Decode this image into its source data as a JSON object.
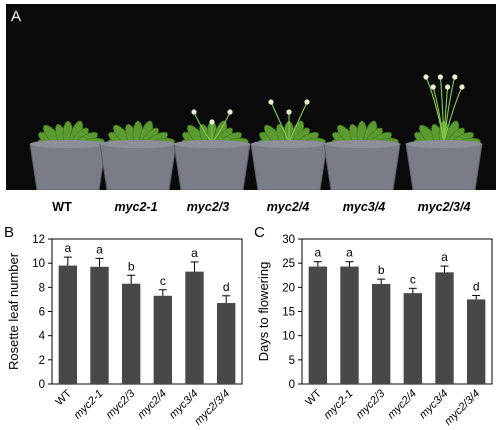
{
  "panel_a": {
    "letter": "A",
    "genotypes": [
      "WT",
      "myc2-1",
      "myc2/3",
      "myc2/4",
      "myc3/4",
      "myc2/3/4"
    ],
    "background_color": "#0a0a0a",
    "pot_color": "#7a7c88",
    "leaf_color": "#5a9a2e"
  },
  "chart_data": [
    {
      "type": "bar",
      "panel_letter": "B",
      "categories": [
        "WT",
        "myc2-1",
        "myc2/3",
        "myc2/4",
        "myc3/4",
        "myc2/3/4"
      ],
      "values": [
        9.8,
        9.7,
        8.3,
        7.3,
        9.3,
        6.7
      ],
      "errors": [
        0.7,
        0.7,
        0.7,
        0.5,
        0.8,
        0.6
      ],
      "significance_letters": [
        "a",
        "a",
        "b",
        "c",
        "a",
        "d"
      ],
      "ylabel": "Rosette leaf number",
      "ylim": [
        0,
        12
      ],
      "yticks": [
        0,
        2,
        4,
        6,
        8,
        10,
        12
      ],
      "bar_color": "#484848"
    },
    {
      "type": "bar",
      "panel_letter": "C",
      "categories": [
        "WT",
        "myc2-1",
        "myc2/3",
        "myc2/4",
        "myc3/4",
        "myc2/3/4"
      ],
      "values": [
        24.3,
        24.3,
        20.7,
        18.8,
        23.1,
        17.5
      ],
      "errors": [
        1.0,
        1.0,
        1.0,
        1.0,
        1.3,
        0.8
      ],
      "significance_letters": [
        "a",
        "a",
        "b",
        "c",
        "a",
        "d"
      ],
      "ylabel": "Days to flowering",
      "ylim": [
        0,
        30
      ],
      "yticks": [
        0,
        5,
        10,
        15,
        20,
        25,
        30
      ],
      "bar_color": "#484848"
    }
  ]
}
